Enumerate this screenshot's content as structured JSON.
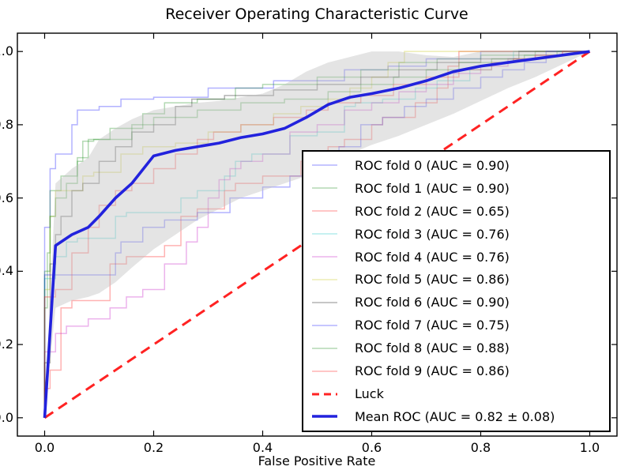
{
  "chart_data": {
    "type": "line",
    "title": "Receiver Operating Characteristic Curve",
    "xlabel": "False Positive Rate",
    "ylabel": "",
    "xlim": [
      -0.05,
      1.05
    ],
    "ylim": [
      -0.05,
      1.05
    ],
    "grid": false,
    "legend_position": "center right",
    "x_tick_values": [
      0.0,
      0.2,
      0.4,
      0.6,
      0.8,
      1.0
    ],
    "x_tick_labels": [
      "0.0",
      "0.2",
      "0.4",
      "0.6",
      "0.8",
      "1.0"
    ],
    "y_tick_values": [
      0.0,
      0.2,
      0.4,
      0.6,
      0.8,
      1.0
    ],
    "y_tick_labels": [
      "0.0",
      "0.2",
      "0.4",
      "0.6",
      "0.8",
      "1.0"
    ],
    "band": {
      "name": "std-dev-band",
      "color": "#bfbfbf",
      "opacity": 0.42,
      "x": [
        0.0,
        0.02,
        0.05,
        0.08,
        0.1,
        0.13,
        0.16,
        0.2,
        0.24,
        0.28,
        0.32,
        0.36,
        0.4,
        0.44,
        0.48,
        0.52,
        0.56,
        0.6,
        0.65,
        0.7,
        0.75,
        0.8,
        0.85,
        0.9,
        0.95,
        1.0
      ],
      "lower": [
        0.0,
        0.3,
        0.32,
        0.33,
        0.34,
        0.37,
        0.41,
        0.46,
        0.5,
        0.54,
        0.57,
        0.6,
        0.62,
        0.64,
        0.66,
        0.69,
        0.72,
        0.745,
        0.77,
        0.8,
        0.83,
        0.865,
        0.9,
        0.93,
        0.965,
        1.0
      ],
      "upper": [
        0.0,
        0.64,
        0.68,
        0.71,
        0.76,
        0.79,
        0.815,
        0.84,
        0.85,
        0.86,
        0.865,
        0.875,
        0.885,
        0.91,
        0.945,
        0.97,
        0.985,
        1.0,
        1.0,
        0.99,
        0.985,
        1.0,
        1.0,
        1.0,
        1.0,
        1.0
      ]
    },
    "series": [
      {
        "label": "ROC fold 0 (AUC = 0.90)",
        "auc": 0.9,
        "color": "#0000ff",
        "opacity": 0.3,
        "width": 1.5,
        "step": true,
        "points": [
          [
            0,
            0
          ],
          [
            0.01,
            0.52
          ],
          [
            0.02,
            0.68
          ],
          [
            0.05,
            0.72
          ],
          [
            0.06,
            0.8
          ],
          [
            0.1,
            0.84
          ],
          [
            0.14,
            0.85
          ],
          [
            0.2,
            0.87
          ],
          [
            0.3,
            0.875
          ],
          [
            0.42,
            0.9
          ],
          [
            0.55,
            0.92
          ],
          [
            0.63,
            0.95
          ],
          [
            0.7,
            0.96
          ],
          [
            0.8,
            0.98
          ],
          [
            0.88,
            1.0
          ],
          [
            1,
            1
          ]
        ]
      },
      {
        "label": "ROC fold 1 (AUC = 0.90)",
        "auc": 0.9,
        "color": "#008000",
        "opacity": 0.3,
        "width": 1.5,
        "step": true,
        "points": [
          [
            0,
            0
          ],
          [
            0.005,
            0.3
          ],
          [
            0.01,
            0.45
          ],
          [
            0.03,
            0.62
          ],
          [
            0.06,
            0.66
          ],
          [
            0.08,
            0.71
          ],
          [
            0.12,
            0.76
          ],
          [
            0.18,
            0.79
          ],
          [
            0.22,
            0.83
          ],
          [
            0.28,
            0.86
          ],
          [
            0.35,
            0.87
          ],
          [
            0.4,
            0.9
          ],
          [
            0.5,
            0.91
          ],
          [
            0.58,
            0.93
          ],
          [
            0.65,
            0.95
          ],
          [
            0.72,
            0.97
          ],
          [
            0.8,
            0.98
          ],
          [
            0.9,
            0.99
          ],
          [
            0.95,
            1.0
          ],
          [
            1,
            1
          ]
        ]
      },
      {
        "label": "ROC fold 2 (AUC = 0.65)",
        "auc": 0.65,
        "color": "#ff0000",
        "opacity": 0.3,
        "width": 1.5,
        "step": true,
        "points": [
          [
            0,
            0
          ],
          [
            0.01,
            0.08
          ],
          [
            0.03,
            0.13
          ],
          [
            0.05,
            0.3
          ],
          [
            0.12,
            0.32
          ],
          [
            0.15,
            0.42
          ],
          [
            0.22,
            0.44
          ],
          [
            0.25,
            0.47
          ],
          [
            0.28,
            0.55
          ],
          [
            0.33,
            0.57
          ],
          [
            0.35,
            0.62
          ],
          [
            0.4,
            0.64
          ],
          [
            0.47,
            0.66
          ],
          [
            0.52,
            0.7
          ],
          [
            0.55,
            0.74
          ],
          [
            0.6,
            0.76
          ],
          [
            0.62,
            0.8
          ],
          [
            0.68,
            0.82
          ],
          [
            0.72,
            0.86
          ],
          [
            0.74,
            0.9
          ],
          [
            0.76,
            0.96
          ],
          [
            0.78,
            1.0
          ],
          [
            1,
            1
          ]
        ]
      },
      {
        "label": "ROC fold 3 (AUC = 0.76)",
        "auc": 0.76,
        "color": "#00bfbf",
        "opacity": 0.3,
        "width": 1.5,
        "step": true,
        "points": [
          [
            0,
            0
          ],
          [
            0.02,
            0.38
          ],
          [
            0.04,
            0.44
          ],
          [
            0.06,
            0.48
          ],
          [
            0.13,
            0.49
          ],
          [
            0.15,
            0.55
          ],
          [
            0.25,
            0.56
          ],
          [
            0.28,
            0.6
          ],
          [
            0.33,
            0.62
          ],
          [
            0.35,
            0.66
          ],
          [
            0.38,
            0.7
          ],
          [
            0.45,
            0.72
          ],
          [
            0.5,
            0.77
          ],
          [
            0.55,
            0.78
          ],
          [
            0.57,
            0.85
          ],
          [
            0.62,
            0.86
          ],
          [
            0.68,
            0.87
          ],
          [
            0.72,
            0.9
          ],
          [
            0.78,
            0.92
          ],
          [
            0.82,
            0.95
          ],
          [
            0.86,
            0.97
          ],
          [
            0.9,
            1.0
          ],
          [
            1,
            1
          ]
        ]
      },
      {
        "label": "ROC fold 4 (AUC = 0.76)",
        "auc": 0.76,
        "color": "#bf00bf",
        "opacity": 0.3,
        "width": 1.5,
        "step": true,
        "points": [
          [
            0,
            0
          ],
          [
            0.02,
            0.18
          ],
          [
            0.04,
            0.23
          ],
          [
            0.08,
            0.25
          ],
          [
            0.12,
            0.27
          ],
          [
            0.15,
            0.3
          ],
          [
            0.18,
            0.33
          ],
          [
            0.22,
            0.35
          ],
          [
            0.26,
            0.42
          ],
          [
            0.28,
            0.48
          ],
          [
            0.3,
            0.52
          ],
          [
            0.32,
            0.6
          ],
          [
            0.34,
            0.65
          ],
          [
            0.36,
            0.68
          ],
          [
            0.4,
            0.7
          ],
          [
            0.45,
            0.72
          ],
          [
            0.5,
            0.78
          ],
          [
            0.55,
            0.8
          ],
          [
            0.6,
            0.84
          ],
          [
            0.65,
            0.86
          ],
          [
            0.7,
            0.89
          ],
          [
            0.75,
            0.91
          ],
          [
            0.8,
            0.94
          ],
          [
            0.85,
            0.96
          ],
          [
            0.9,
            0.98
          ],
          [
            0.95,
            0.99
          ],
          [
            1,
            1
          ]
        ]
      },
      {
        "label": "ROC fold 5 (AUC = 0.86)",
        "auc": 0.86,
        "color": "#bfbf00",
        "opacity": 0.3,
        "width": 1.5,
        "step": true,
        "points": [
          [
            0,
            0
          ],
          [
            0.01,
            0.35
          ],
          [
            0.02,
            0.55
          ],
          [
            0.07,
            0.62
          ],
          [
            0.09,
            0.66
          ],
          [
            0.14,
            0.67
          ],
          [
            0.18,
            0.72
          ],
          [
            0.24,
            0.74
          ],
          [
            0.3,
            0.75
          ],
          [
            0.36,
            0.78
          ],
          [
            0.42,
            0.8
          ],
          [
            0.47,
            0.83
          ],
          [
            0.52,
            0.85
          ],
          [
            0.56,
            0.87
          ],
          [
            0.6,
            0.9
          ],
          [
            0.63,
            0.93
          ],
          [
            0.66,
            0.97
          ],
          [
            0.68,
            1.0
          ],
          [
            1,
            1
          ]
        ]
      },
      {
        "label": "ROC fold 6 (AUC = 0.90)",
        "auc": 0.9,
        "color": "#000000",
        "opacity": 0.3,
        "width": 1.5,
        "step": true,
        "points": [
          [
            0,
            0
          ],
          [
            0.01,
            0.15
          ],
          [
            0.02,
            0.42
          ],
          [
            0.03,
            0.5
          ],
          [
            0.05,
            0.55
          ],
          [
            0.07,
            0.62
          ],
          [
            0.1,
            0.64
          ],
          [
            0.13,
            0.7
          ],
          [
            0.16,
            0.74
          ],
          [
            0.2,
            0.78
          ],
          [
            0.24,
            0.8
          ],
          [
            0.27,
            0.85
          ],
          [
            0.33,
            0.87
          ],
          [
            0.42,
            0.88
          ],
          [
            0.5,
            0.895
          ],
          [
            0.58,
            0.91
          ],
          [
            0.65,
            0.93
          ],
          [
            0.72,
            0.95
          ],
          [
            0.8,
            0.97
          ],
          [
            0.87,
            0.98
          ],
          [
            0.93,
            1.0
          ],
          [
            1,
            1
          ]
        ]
      },
      {
        "label": "ROC fold 7 (AUC = 0.75)",
        "auc": 0.75,
        "color": "#0000ff",
        "opacity": 0.3,
        "width": 1.5,
        "step": true,
        "points": [
          [
            0,
            0
          ],
          [
            0.015,
            0.39
          ],
          [
            0.13,
            0.39
          ],
          [
            0.14,
            0.45
          ],
          [
            0.18,
            0.48
          ],
          [
            0.22,
            0.52
          ],
          [
            0.28,
            0.54
          ],
          [
            0.34,
            0.56
          ],
          [
            0.4,
            0.6
          ],
          [
            0.45,
            0.63
          ],
          [
            0.5,
            0.66
          ],
          [
            0.54,
            0.7
          ],
          [
            0.58,
            0.74
          ],
          [
            0.62,
            0.8
          ],
          [
            0.66,
            0.82
          ],
          [
            0.7,
            0.85
          ],
          [
            0.75,
            0.87
          ],
          [
            0.8,
            0.9
          ],
          [
            0.84,
            0.93
          ],
          [
            0.88,
            0.95
          ],
          [
            0.92,
            0.97
          ],
          [
            0.96,
            1.0
          ],
          [
            1,
            1
          ]
        ]
      },
      {
        "label": "ROC fold 8 (AUC = 0.88)",
        "auc": 0.88,
        "color": "#008000",
        "opacity": 0.3,
        "width": 1.5,
        "step": true,
        "points": [
          [
            0,
            0
          ],
          [
            0.01,
            0.4
          ],
          [
            0.02,
            0.55
          ],
          [
            0.04,
            0.6
          ],
          [
            0.06,
            0.64
          ],
          [
            0.07,
            0.7
          ],
          [
            0.09,
            0.755
          ],
          [
            0.16,
            0.76
          ],
          [
            0.2,
            0.8
          ],
          [
            0.28,
            0.82
          ],
          [
            0.36,
            0.84
          ],
          [
            0.44,
            0.86
          ],
          [
            0.52,
            0.87
          ],
          [
            0.58,
            0.89
          ],
          [
            0.64,
            0.91
          ],
          [
            0.7,
            0.93
          ],
          [
            0.76,
            0.95
          ],
          [
            0.82,
            0.97
          ],
          [
            0.88,
            0.98
          ],
          [
            0.94,
            0.99
          ],
          [
            1,
            1
          ]
        ]
      },
      {
        "label": "ROC fold 9 (AUC = 0.86)",
        "auc": 0.86,
        "color": "#ff0000",
        "opacity": 0.3,
        "width": 1.5,
        "step": true,
        "points": [
          [
            0,
            0
          ],
          [
            0.02,
            0.33
          ],
          [
            0.05,
            0.35
          ],
          [
            0.08,
            0.45
          ],
          [
            0.1,
            0.52
          ],
          [
            0.13,
            0.58
          ],
          [
            0.16,
            0.62
          ],
          [
            0.2,
            0.64
          ],
          [
            0.24,
            0.68
          ],
          [
            0.28,
            0.72
          ],
          [
            0.31,
            0.76
          ],
          [
            0.36,
            0.78
          ],
          [
            0.42,
            0.8
          ],
          [
            0.48,
            0.82
          ],
          [
            0.52,
            0.84
          ],
          [
            0.58,
            0.86
          ],
          [
            0.64,
            0.88
          ],
          [
            0.7,
            0.91
          ],
          [
            0.76,
            0.93
          ],
          [
            0.82,
            0.95
          ],
          [
            0.86,
            0.97
          ],
          [
            0.9,
            0.98
          ],
          [
            0.95,
            0.99
          ],
          [
            1,
            1
          ]
        ]
      },
      {
        "label": "Luck",
        "color": "#ff2222",
        "opacity": 1,
        "width": 3,
        "dash": [
          13,
          8
        ],
        "step": false,
        "points": [
          [
            0,
            0
          ],
          [
            1,
            1
          ]
        ]
      },
      {
        "label": "Mean ROC (AUC = 0.82 ± 0.08)",
        "auc": 0.82,
        "auc_std": 0.08,
        "color": "#2222dd",
        "opacity": 1,
        "width": 3.6,
        "step": false,
        "points": [
          [
            0,
            0
          ],
          [
            0.02,
            0.47
          ],
          [
            0.05,
            0.5
          ],
          [
            0.08,
            0.52
          ],
          [
            0.1,
            0.55
          ],
          [
            0.13,
            0.6
          ],
          [
            0.16,
            0.64
          ],
          [
            0.2,
            0.715
          ],
          [
            0.24,
            0.73
          ],
          [
            0.28,
            0.74
          ],
          [
            0.32,
            0.75
          ],
          [
            0.36,
            0.765
          ],
          [
            0.4,
            0.775
          ],
          [
            0.44,
            0.79
          ],
          [
            0.48,
            0.82
          ],
          [
            0.52,
            0.855
          ],
          [
            0.56,
            0.875
          ],
          [
            0.6,
            0.885
          ],
          [
            0.65,
            0.9
          ],
          [
            0.7,
            0.92
          ],
          [
            0.75,
            0.945
          ],
          [
            0.8,
            0.96
          ],
          [
            0.85,
            0.97
          ],
          [
            0.9,
            0.98
          ],
          [
            0.95,
            0.99
          ],
          [
            1,
            1
          ]
        ]
      }
    ]
  }
}
